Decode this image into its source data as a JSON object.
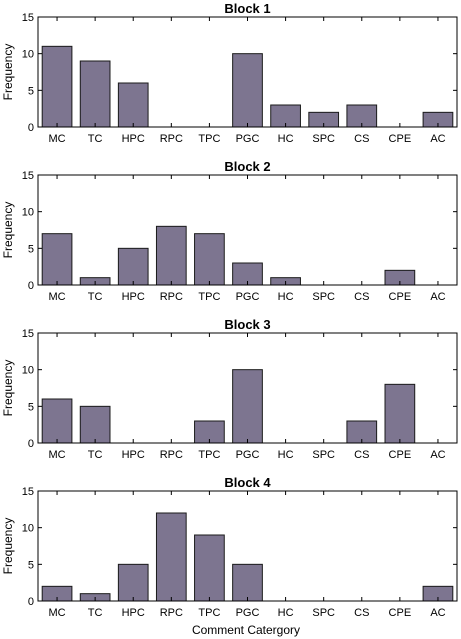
{
  "colors": {
    "bar_fill": "#7d7590",
    "bar_stroke": "#1a1a1a",
    "axis": "#000000"
  },
  "xlabel": "Comment Catergory",
  "chart_data": [
    {
      "type": "bar",
      "title": "Block 1",
      "ylabel": "Frequency",
      "ylim": [
        0,
        15
      ],
      "yticks": [
        0,
        5,
        10,
        15
      ],
      "categories": [
        "MC",
        "TC",
        "HPC",
        "RPC",
        "TPC",
        "PGC",
        "HC",
        "SPC",
        "CS",
        "CPE",
        "AC"
      ],
      "values": [
        11,
        9,
        6,
        0,
        0,
        10,
        3,
        2,
        3,
        0,
        2
      ]
    },
    {
      "type": "bar",
      "title": "Block 2",
      "ylabel": "Frequency",
      "ylim": [
        0,
        15
      ],
      "yticks": [
        0,
        5,
        10,
        15
      ],
      "categories": [
        "MC",
        "TC",
        "HPC",
        "RPC",
        "TPC",
        "PGC",
        "HC",
        "SPC",
        "CS",
        "CPE",
        "AC"
      ],
      "values": [
        7,
        1,
        5,
        8,
        7,
        3,
        1,
        0,
        0,
        2,
        0
      ]
    },
    {
      "type": "bar",
      "title": "Block 3",
      "ylabel": "Frequency",
      "ylim": [
        0,
        15
      ],
      "yticks": [
        0,
        5,
        10,
        15
      ],
      "categories": [
        "MC",
        "TC",
        "HPC",
        "RPC",
        "TPC",
        "PGC",
        "HC",
        "SPC",
        "CS",
        "CPE",
        "AC"
      ],
      "values": [
        6,
        5,
        0,
        0,
        3,
        10,
        0,
        0,
        3,
        8,
        0
      ]
    },
    {
      "type": "bar",
      "title": "Block 4",
      "ylabel": "Frequency",
      "ylim": [
        0,
        15
      ],
      "yticks": [
        0,
        5,
        10,
        15
      ],
      "categories": [
        "MC",
        "TC",
        "HPC",
        "RPC",
        "TPC",
        "PGC",
        "HC",
        "SPC",
        "CS",
        "CPE",
        "AC"
      ],
      "values": [
        2,
        1,
        5,
        12,
        9,
        5,
        0,
        0,
        0,
        0,
        2
      ]
    }
  ]
}
